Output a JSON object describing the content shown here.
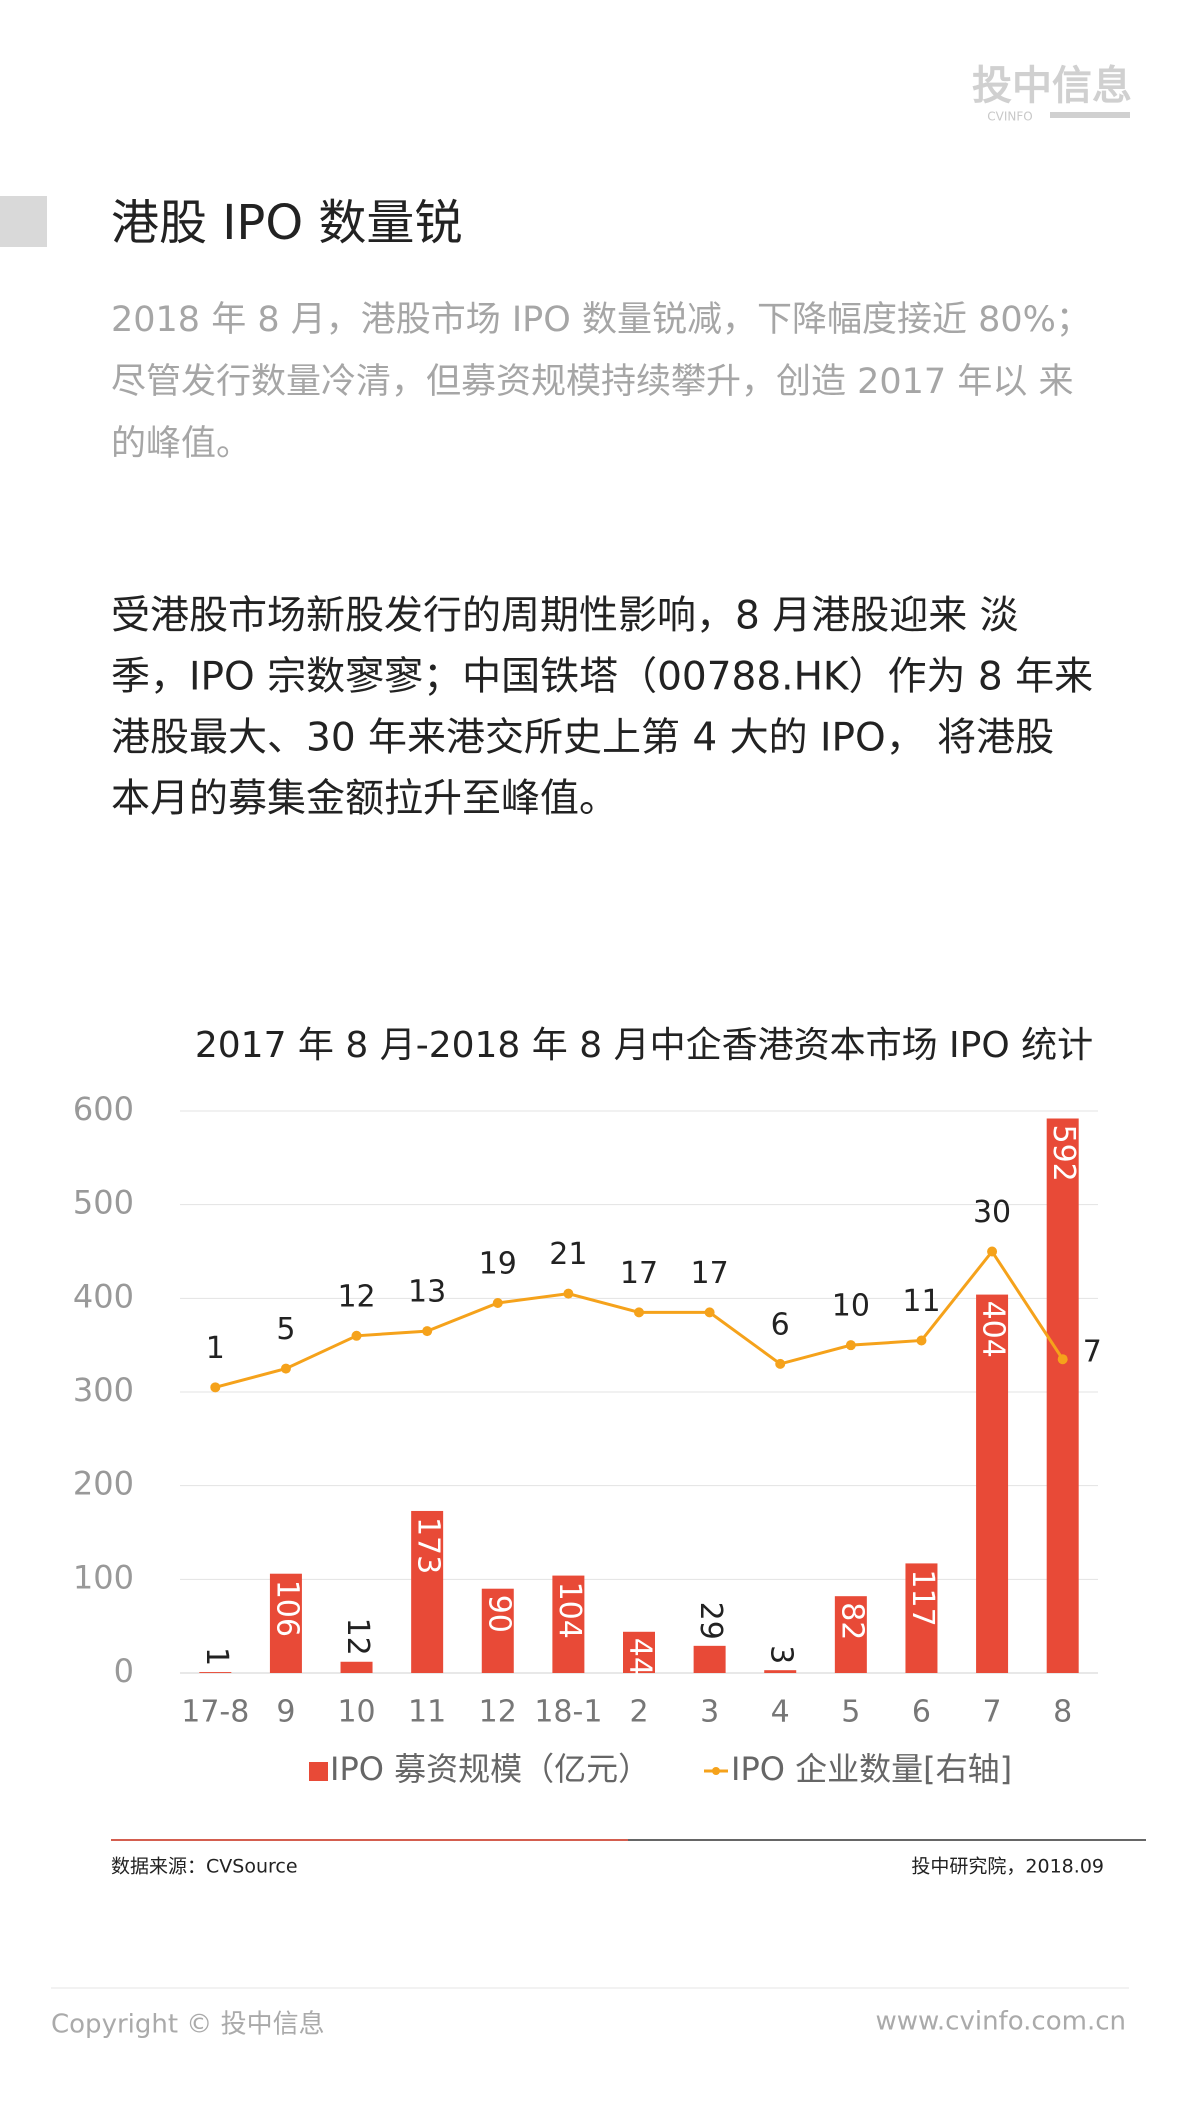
{
  "logo": {
    "name": "投中信息",
    "sub": "CVINFO"
  },
  "header": {
    "title": "港股 IPO 数量锐"
  },
  "summary": {
    "lines": [
      "2018 年 8 月，港股市场 IPO 数量锐减，下降幅度接近 80%；",
      "尽管发行数量冷清，但募资规模持续攀升，创造 2017 年以 来",
      "的峰值。"
    ]
  },
  "body": {
    "lines": [
      "受港股市场新股发行的周期性影响，8 月港股迎来 淡",
      "季，IPO 宗数寥寥；中国铁塔（00788.HK）作为 8 年来",
      "港股最大、30 年来港交所史上第 4 大的 IPO， 将港股",
      "本月的募集金额拉升至峰值。"
    ]
  },
  "chart_data": {
    "type": "bar",
    "title": "2017 年 8 月-2018 年 8 月中企香港资本市场 IPO 统计",
    "categories": [
      "17-8",
      "9",
      "10",
      "11",
      "12",
      "18-1",
      "2",
      "3",
      "4",
      "5",
      "6",
      "7",
      "8"
    ],
    "series": [
      {
        "name": "IPO 募资规模（亿元）",
        "type": "bar",
        "color": "#e84a37",
        "values": [
          1,
          106,
          12,
          173,
          90,
          104,
          44,
          29,
          3,
          82,
          117,
          404,
          592
        ]
      },
      {
        "name": "IPO 企业数量[右轴]",
        "type": "line",
        "axis": "y2",
        "color": "#f5a21b",
        "values": [
          1,
          5,
          12,
          13,
          19,
          21,
          17,
          17,
          6,
          10,
          11,
          30,
          7
        ]
      }
    ],
    "ylim": [
      0,
      600
    ],
    "yticks": [
      0,
      100,
      200,
      300,
      400,
      500,
      600
    ],
    "y2lim": [
      -60,
      60
    ],
    "grid": true
  },
  "source": {
    "left": "数据来源：CVSource",
    "right": "投中研究院，2018.09"
  },
  "footer": {
    "copyright": "Copyright © 投中信息",
    "url": "www.cvinfo.com.cn"
  }
}
